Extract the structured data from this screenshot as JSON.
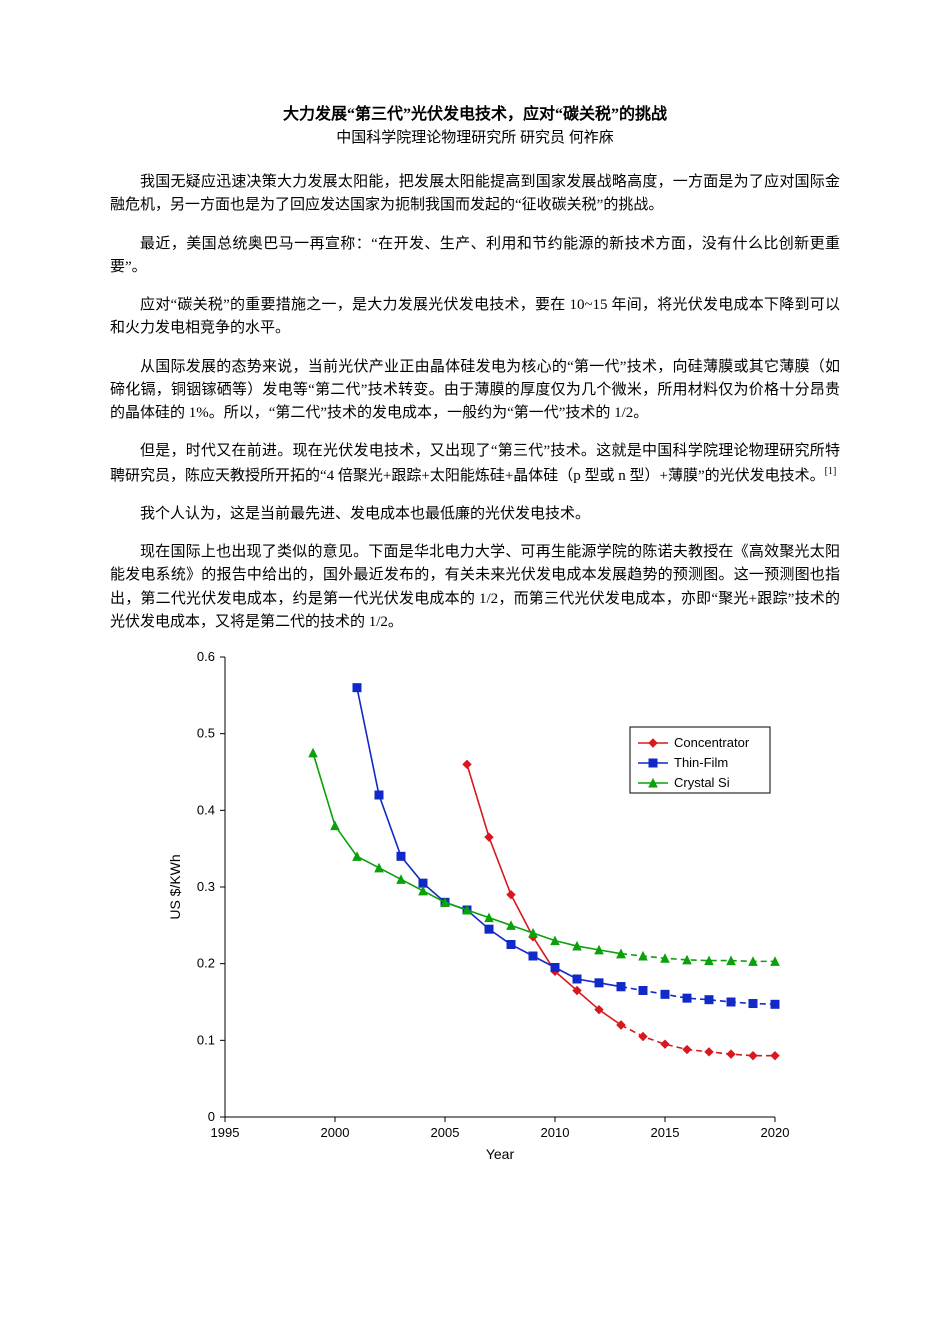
{
  "doc": {
    "title": "大力发展“第三代”光伏发电技术，应对“碳关税”的挑战",
    "subtitle": "中国科学院理论物理研究所 研究员 何祚庥",
    "p1": "我国无疑应迅速决策大力发展太阳能，把发展太阳能提高到国家发展战略高度，一方面是为了应对国际金融危机，另一方面也是为了回应发达国家为扼制我国而发起的“征收碳关税”的挑战。",
    "p2": "最近，美国总统奥巴马一再宣称：“在开发、生产、利用和节约能源的新技术方面，没有什么比创新更重要”。",
    "p3": "应对“碳关税”的重要措施之一，是大力发展光伏发电技术，要在 10~15 年间，将光伏发电成本下降到可以和火力发电相竞争的水平。",
    "p4": "从国际发展的态势来说，当前光伏产业正由晶体硅发电为核心的“第一代”技术，向硅薄膜或其它薄膜（如碲化镉，铜铟镓硒等）发电等“第二代”技术转变。由于薄膜的厚度仅为几个微米，所用材料仅为价格十分昂贵的晶体硅的 1%。所以，“第二代”技术的发电成本，一般约为“第一代”技术的 1/2。",
    "p5": "但是，时代又在前进。现在光伏发电技术，又出现了“第三代”技术。这就是中国科学院理论物理研究所特聘研究员，陈应天教授所开拓的“4 倍聚光+跟踪+太阳能炼硅+晶体硅（p 型或 n 型）+薄膜”的光伏发电技术。",
    "p5_sup": "[1]",
    "p6": "我个人认为，这是当前最先进、发电成本也最低廉的光伏发电技术。",
    "p7": "现在国际上也出现了类似的意见。下面是华北电力大学、可再生能源学院的陈诺夫教授在《高效聚光太阳能发电系统》的报告中给出的，国外最近发布的，有关未来光伏发电成本发展趋势的预测图。这一预测图也指出，第二代光伏发电成本，约是第一代光伏发电成本的 1/2，而第三代光伏发电成本，亦即“聚光+跟踪”技术的光伏发电成本，又将是第二代的技术的 1/2。"
  },
  "chart": {
    "type": "line",
    "x_label": "Year",
    "y_label": "US $/KWh",
    "xlim": [
      1995,
      2020
    ],
    "ylim": [
      0,
      0.6
    ],
    "x_ticks": [
      1995,
      2000,
      2005,
      2010,
      2015,
      2020
    ],
    "y_ticks": [
      0,
      0.1,
      0.2,
      0.3,
      0.4,
      0.5,
      0.6
    ],
    "y_tick_labels": [
      "0",
      "0.1",
      "0.2",
      "0.3",
      "0.4",
      "0.5",
      "0.6"
    ],
    "axis_color": "#000000",
    "background_color": "#ffffff",
    "tick_fontsize": 13,
    "label_fontsize": 14,
    "legend": {
      "items": [
        {
          "label": "Concentrator",
          "color": "#d8181f",
          "marker": "diamond"
        },
        {
          "label": "Thin-Film",
          "color": "#1029c8",
          "marker": "square"
        },
        {
          "label": "Crystal Si",
          "color": "#0aa10a",
          "marker": "triangle"
        }
      ]
    },
    "series": [
      {
        "name": "Concentrator",
        "color": "#d8181f",
        "marker": "diamond",
        "solid": [
          {
            "x": 2006,
            "y": 0.46
          },
          {
            "x": 2007,
            "y": 0.365
          },
          {
            "x": 2008,
            "y": 0.29
          },
          {
            "x": 2009,
            "y": 0.235
          },
          {
            "x": 2010,
            "y": 0.19
          },
          {
            "x": 2011,
            "y": 0.165
          },
          {
            "x": 2012,
            "y": 0.14
          },
          {
            "x": 2013,
            "y": 0.12
          }
        ],
        "dashed": [
          {
            "x": 2013,
            "y": 0.12
          },
          {
            "x": 2014,
            "y": 0.105
          },
          {
            "x": 2015,
            "y": 0.095
          },
          {
            "x": 2016,
            "y": 0.088
          },
          {
            "x": 2017,
            "y": 0.085
          },
          {
            "x": 2018,
            "y": 0.082
          },
          {
            "x": 2019,
            "y": 0.08
          },
          {
            "x": 2020,
            "y": 0.08
          }
        ]
      },
      {
        "name": "Thin-Film",
        "color": "#1029c8",
        "marker": "square",
        "solid": [
          {
            "x": 2001,
            "y": 0.56
          },
          {
            "x": 2002,
            "y": 0.42
          },
          {
            "x": 2003,
            "y": 0.34
          },
          {
            "x": 2004,
            "y": 0.305
          },
          {
            "x": 2005,
            "y": 0.28
          },
          {
            "x": 2006,
            "y": 0.27
          },
          {
            "x": 2007,
            "y": 0.245
          },
          {
            "x": 2008,
            "y": 0.225
          },
          {
            "x": 2009,
            "y": 0.21
          },
          {
            "x": 2010,
            "y": 0.195
          },
          {
            "x": 2011,
            "y": 0.18
          },
          {
            "x": 2012,
            "y": 0.175
          },
          {
            "x": 2013,
            "y": 0.17
          }
        ],
        "dashed": [
          {
            "x": 2013,
            "y": 0.17
          },
          {
            "x": 2014,
            "y": 0.165
          },
          {
            "x": 2015,
            "y": 0.16
          },
          {
            "x": 2016,
            "y": 0.155
          },
          {
            "x": 2017,
            "y": 0.153
          },
          {
            "x": 2018,
            "y": 0.15
          },
          {
            "x": 2019,
            "y": 0.148
          },
          {
            "x": 2020,
            "y": 0.147
          }
        ]
      },
      {
        "name": "Crystal Si",
        "color": "#0aa10a",
        "marker": "triangle",
        "solid": [
          {
            "x": 1999,
            "y": 0.475
          },
          {
            "x": 2000,
            "y": 0.38
          },
          {
            "x": 2001,
            "y": 0.34
          },
          {
            "x": 2002,
            "y": 0.325
          },
          {
            "x": 2003,
            "y": 0.31
          },
          {
            "x": 2004,
            "y": 0.295
          },
          {
            "x": 2005,
            "y": 0.28
          },
          {
            "x": 2006,
            "y": 0.27
          },
          {
            "x": 2007,
            "y": 0.26
          },
          {
            "x": 2008,
            "y": 0.25
          },
          {
            "x": 2009,
            "y": 0.24
          },
          {
            "x": 2010,
            "y": 0.23
          },
          {
            "x": 2011,
            "y": 0.223
          },
          {
            "x": 2012,
            "y": 0.218
          },
          {
            "x": 2013,
            "y": 0.213
          }
        ],
        "dashed": [
          {
            "x": 2013,
            "y": 0.213
          },
          {
            "x": 2014,
            "y": 0.21
          },
          {
            "x": 2015,
            "y": 0.207
          },
          {
            "x": 2016,
            "y": 0.205
          },
          {
            "x": 2017,
            "y": 0.204
          },
          {
            "x": 2018,
            "y": 0.204
          },
          {
            "x": 2019,
            "y": 0.203
          },
          {
            "x": 2020,
            "y": 0.203
          }
        ]
      }
    ]
  }
}
